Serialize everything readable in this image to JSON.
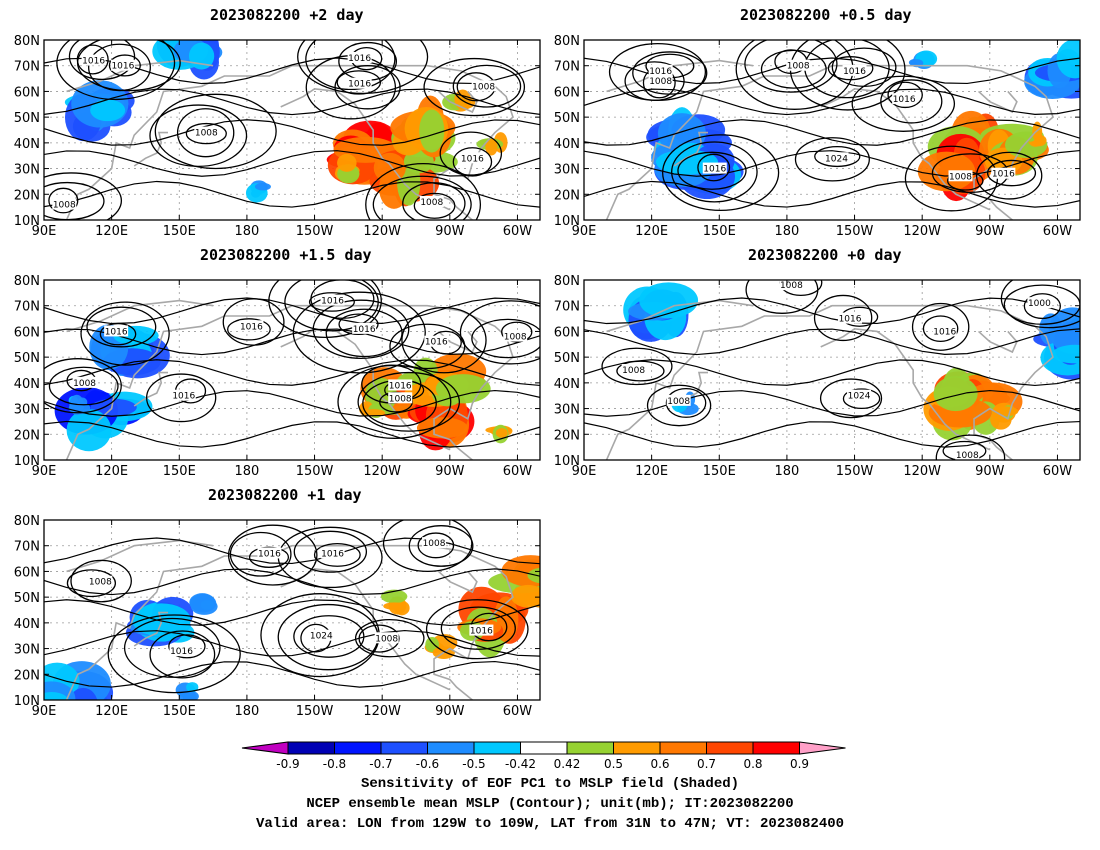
{
  "chart_data": [
    {
      "type": "contour",
      "title": "2023082200 +2 day",
      "x_ticks": [
        "90E",
        "120E",
        "150E",
        "180",
        "150W",
        "120W",
        "90W",
        "60W"
      ],
      "y_ticks": [
        "10N",
        "20N",
        "30N",
        "40N",
        "50N",
        "60N",
        "70N",
        "80N"
      ],
      "xlim": [
        "90E",
        "50W"
      ],
      "ylim": [
        10,
        80
      ],
      "contour_labels": [
        {
          "text": "1016",
          "lon": 112,
          "lat": 72
        },
        {
          "text": "1016",
          "lon": 125,
          "lat": 70
        },
        {
          "text": "1016",
          "lon": -130,
          "lat": 73
        },
        {
          "text": "1016",
          "lon": -130,
          "lat": 63
        },
        {
          "text": "1008",
          "lon": -75,
          "lat": 62
        },
        {
          "text": "1008",
          "lon": 162,
          "lat": 44
        },
        {
          "text": "1016",
          "lon": -80,
          "lat": 34
        },
        {
          "text": "1008",
          "lon": -98,
          "lat": 17
        },
        {
          "text": "1008",
          "lon": 99,
          "lat": 16
        }
      ],
      "shaded_regions": [
        {
          "lon": -118,
          "lat": 38,
          "value": 0.9
        },
        {
          "lon": -128,
          "lat": 36,
          "value": 0.8
        },
        {
          "lon": -108,
          "lat": 28,
          "value": 0.7
        },
        {
          "lon": -100,
          "lat": 44,
          "value": 0.6
        },
        {
          "lon": -135,
          "lat": 30,
          "value": 0.5
        },
        {
          "lon": -85,
          "lat": 55,
          "value": 0.5
        },
        {
          "lon": -70,
          "lat": 40,
          "value": 0.5
        },
        {
          "lon": 115,
          "lat": 52,
          "value": -0.6
        },
        {
          "lon": 155,
          "lat": 76,
          "value": -0.6
        },
        {
          "lon": -175,
          "lat": 22,
          "value": -0.5
        }
      ]
    },
    {
      "type": "contour",
      "title": "2023082200 +0.5 day",
      "x_ticks": [
        "90E",
        "120E",
        "150E",
        "180",
        "150W",
        "120W",
        "90W",
        "60W"
      ],
      "y_ticks": [
        "10N",
        "20N",
        "30N",
        "40N",
        "50N",
        "60N",
        "70N",
        "80N"
      ],
      "xlim": [
        "90E",
        "50W"
      ],
      "ylim": [
        10,
        80
      ],
      "contour_labels": [
        {
          "text": "1016",
          "lon": 124,
          "lat": 68
        },
        {
          "text": "1008",
          "lon": 124,
          "lat": 64
        },
        {
          "text": "1008",
          "lon": -175,
          "lat": 70
        },
        {
          "text": "1016",
          "lon": -150,
          "lat": 68
        },
        {
          "text": "1016",
          "lon": -128,
          "lat": 57
        },
        {
          "text": "1024",
          "lon": -158,
          "lat": 34
        },
        {
          "text": "1016",
          "lon": 148,
          "lat": 30
        },
        {
          "text": "1008",
          "lon": -103,
          "lat": 27
        },
        {
          "text": "1016",
          "lon": -84,
          "lat": 28
        }
      ],
      "shaded_regions": [
        {
          "lon": -96,
          "lat": 38,
          "value": 0.7
        },
        {
          "lon": -102,
          "lat": 30,
          "value": 0.8
        },
        {
          "lon": -80,
          "lat": 38,
          "value": 0.6
        },
        {
          "lon": -70,
          "lat": 42,
          "value": 0.5
        },
        {
          "lon": -58,
          "lat": 68,
          "value": -0.6
        },
        {
          "lon": 135,
          "lat": 40,
          "value": -0.6
        },
        {
          "lon": 142,
          "lat": 30,
          "value": -0.6
        },
        {
          "lon": -120,
          "lat": 72,
          "value": -0.5
        }
      ]
    },
    {
      "type": "contour",
      "title": "2023082200 +1.5 day",
      "x_ticks": [
        "90E",
        "120E",
        "150E",
        "180",
        "150W",
        "120W",
        "90W",
        "60W"
      ],
      "y_ticks": [
        "10N",
        "20N",
        "30N",
        "40N",
        "50N",
        "60N",
        "70N",
        "80N"
      ],
      "xlim": [
        "90E",
        "50W"
      ],
      "ylim": [
        10,
        80
      ],
      "contour_labels": [
        {
          "text": "1016",
          "lon": -142,
          "lat": 72
        },
        {
          "text": "1016",
          "lon": 122,
          "lat": 60
        },
        {
          "text": "1016",
          "lon": -178,
          "lat": 62
        },
        {
          "text": "1016",
          "lon": -128,
          "lat": 61
        },
        {
          "text": "1016",
          "lon": -96,
          "lat": 56
        },
        {
          "text": "1008",
          "lon": -61,
          "lat": 58
        },
        {
          "text": "1008",
          "lon": 108,
          "lat": 40
        },
        {
          "text": "1016",
          "lon": 152,
          "lat": 35
        },
        {
          "text": "1016",
          "lon": -112,
          "lat": 39
        },
        {
          "text": "1008",
          "lon": -112,
          "lat": 34
        }
      ],
      "shaded_regions": [
        {
          "lon": -112,
          "lat": 36,
          "value": 0.7
        },
        {
          "lon": -96,
          "lat": 26,
          "value": 0.8
        },
        {
          "lon": -92,
          "lat": 40,
          "value": 0.6
        },
        {
          "lon": -125,
          "lat": 28,
          "value": 0.5
        },
        {
          "lon": -70,
          "lat": 20,
          "value": 0.5
        },
        {
          "lon": 117,
          "lat": 26,
          "value": -0.7
        },
        {
          "lon": 124,
          "lat": 53,
          "value": -0.6
        },
        {
          "lon": 105,
          "lat": 32,
          "value": -0.5
        }
      ]
    },
    {
      "type": "contour",
      "title": "2023082200 +0 day",
      "x_ticks": [
        "90E",
        "120E",
        "150E",
        "180",
        "150W",
        "120W",
        "90W",
        "60W"
      ],
      "y_ticks": [
        "10N",
        "20N",
        "30N",
        "40N",
        "50N",
        "60N",
        "70N",
        "80N"
      ],
      "xlim": [
        "90E",
        "50W"
      ],
      "ylim": [
        10,
        80
      ],
      "contour_labels": [
        {
          "text": "1008",
          "lon": -178,
          "lat": 78
        },
        {
          "text": "1000",
          "lon": -68,
          "lat": 71
        },
        {
          "text": "1016",
          "lon": -152,
          "lat": 65
        },
        {
          "text": "1016",
          "lon": -110,
          "lat": 60
        },
        {
          "text": "1008",
          "lon": 112,
          "lat": 45
        },
        {
          "text": "1008",
          "lon": 132,
          "lat": 33
        },
        {
          "text": "1024",
          "lon": -148,
          "lat": 35
        },
        {
          "text": "1008",
          "lon": -100,
          "lat": 12
        }
      ],
      "shaded_regions": [
        {
          "lon": -96,
          "lat": 36,
          "value": 0.7
        },
        {
          "lon": -100,
          "lat": 30,
          "value": 0.6
        },
        {
          "lon": -82,
          "lat": 27,
          "value": 0.5
        },
        {
          "lon": -55,
          "lat": 55,
          "value": -0.6
        },
        {
          "lon": 124,
          "lat": 69,
          "value": -0.6
        },
        {
          "lon": 135,
          "lat": 32,
          "value": -0.5
        }
      ]
    },
    {
      "type": "contour",
      "title": "2023082200 +1 day",
      "x_ticks": [
        "90E",
        "120E",
        "150E",
        "180",
        "150W",
        "120W",
        "90W",
        "60W"
      ],
      "y_ticks": [
        "10N",
        "20N",
        "30N",
        "40N",
        "50N",
        "60N",
        "70N",
        "80N"
      ],
      "xlim": [
        "90E",
        "50W"
      ],
      "ylim": [
        10,
        80
      ],
      "contour_labels": [
        {
          "text": "1016",
          "lon": -170,
          "lat": 67
        },
        {
          "text": "1016",
          "lon": -142,
          "lat": 67
        },
        {
          "text": "1008",
          "lon": -97,
          "lat": 71
        },
        {
          "text": "1008",
          "lon": 115,
          "lat": 56
        },
        {
          "text": "1024",
          "lon": -147,
          "lat": 35
        },
        {
          "text": "1008",
          "lon": -118,
          "lat": 34
        },
        {
          "text": "1016",
          "lon": -76,
          "lat": 37
        },
        {
          "text": "1016",
          "lon": 151,
          "lat": 29
        }
      ],
      "shaded_regions": [
        {
          "lon": -72,
          "lat": 40,
          "value": 0.7
        },
        {
          "lon": -52,
          "lat": 55,
          "value": 0.6
        },
        {
          "lon": -95,
          "lat": 30,
          "value": 0.5
        },
        {
          "lon": -112,
          "lat": 48,
          "value": 0.5
        },
        {
          "lon": 142,
          "lat": 40,
          "value": -0.6
        },
        {
          "lon": 162,
          "lat": 46,
          "value": -0.5
        },
        {
          "lon": 155,
          "lat": 13,
          "value": -0.5
        },
        {
          "lon": 100,
          "lat": 12,
          "value": -0.6
        }
      ]
    }
  ],
  "colorbar": {
    "labels": [
      "-0.9",
      "-0.8",
      "-0.7",
      "-0.6",
      "-0.5",
      "-0.42",
      "0.42",
      "0.5",
      "0.6",
      "0.7",
      "0.8",
      "0.9"
    ],
    "colors": {
      "lt_-0.9": "#c000c0",
      "-0.9_-0.8": "#0000b4",
      "-0.8_-0.7": "#0014ff",
      "-0.7_-0.6": "#1e50ff",
      "-0.6_-0.5": "#1e8cff",
      "-0.5_-0.42": "#00c8ff",
      "-0.42_0.42": "#ffffff",
      "0.42_0.5": "#96d232",
      "0.5_0.6": "#ff9b00",
      "0.6_0.7": "#ff7800",
      "0.7_0.8": "#ff4600",
      "0.8_0.9": "#ff0000",
      "gt_0.9": "#ffa0c8"
    }
  },
  "caption": {
    "line1": "Sensitivity of EOF PC1 to MSLP field (Shaded)",
    "line2": "NCEP ensemble mean MSLP (Contour); unit(mb); IT:2023082200",
    "line3": "Valid area: LON from 129W to 109W, LAT from 31N to 47N; VT: 2023082400"
  }
}
